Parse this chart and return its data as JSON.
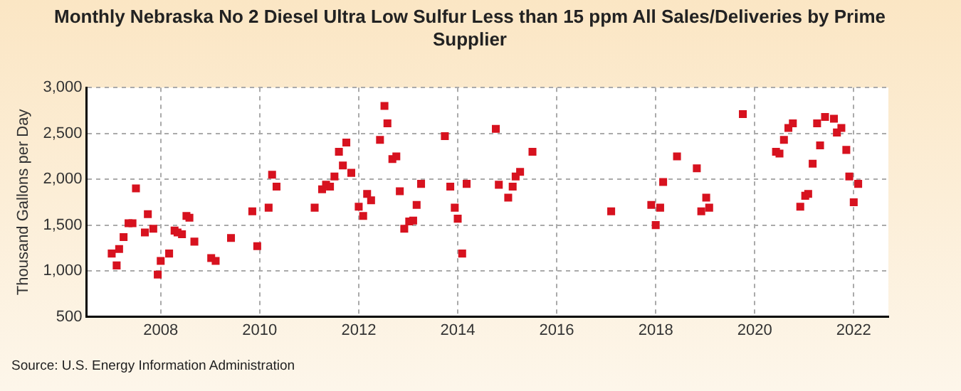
{
  "chart_data": {
    "type": "scatter",
    "title": "Monthly Nebraska No 2 Diesel Ultra Low Sulfur Less than 15 ppm All Sales/Deliveries by Prime Supplier",
    "ylabel": "Thousand Gallons per Day",
    "annotations": [
      "Source: U.S. Energy Information Administration"
    ],
    "xlim": [
      2006.5,
      2022.7
    ],
    "xticks": [
      2008,
      2010,
      2012,
      2014,
      2016,
      2018,
      2020,
      2022
    ],
    "ylim": [
      500,
      3000
    ],
    "yticks": [
      500,
      {
        "value": 1000,
        "label": "1,000"
      },
      {
        "value": 1500,
        "label": "1,500"
      },
      {
        "value": 2000,
        "label": "2,000"
      },
      {
        "value": 2500,
        "label": "2,500"
      },
      {
        "value": 3000,
        "label": "3,000"
      }
    ],
    "grid": true,
    "marker": "square",
    "legend": false,
    "series": [
      {
        "color": "#d7121f",
        "x": [
          2007.01,
          2007.11,
          2007.16,
          2007.25,
          2007.35,
          2007.43,
          2007.5,
          2007.68,
          2007.74,
          2007.85,
          2007.94,
          2008.0,
          2008.17,
          2008.28,
          2008.34,
          2008.43,
          2008.52,
          2008.58,
          2008.68,
          2009.02,
          2009.11,
          2009.42,
          2009.85,
          2009.95,
          2010.18,
          2010.25,
          2010.34,
          2011.11,
          2011.26,
          2011.34,
          2011.42,
          2011.51,
          2011.6,
          2011.68,
          2011.75,
          2011.85,
          2012.0,
          2012.09,
          2012.17,
          2012.25,
          2012.43,
          2012.52,
          2012.58,
          2012.68,
          2012.76,
          2012.83,
          2012.92,
          2013.02,
          2013.1,
          2013.17,
          2013.26,
          2013.74,
          2013.85,
          2013.94,
          2014.0,
          2014.09,
          2014.18,
          2014.77,
          2014.83,
          2015.02,
          2015.11,
          2015.17,
          2015.26,
          2015.51,
          2017.1,
          2017.91,
          2018.0,
          2018.09,
          2018.15,
          2018.43,
          2018.83,
          2018.92,
          2019.02,
          2019.08,
          2019.76,
          2020.43,
          2020.5,
          2020.59,
          2020.68,
          2020.77,
          2020.92,
          2021.02,
          2021.08,
          2021.17,
          2021.26,
          2021.32,
          2021.42,
          2021.6,
          2021.66,
          2021.75,
          2021.85,
          2021.91,
          2022.0,
          2022.09
        ],
        "values": [
          1190,
          1060,
          1240,
          1370,
          1520,
          1520,
          1900,
          1420,
          1620,
          1460,
          960,
          1110,
          1190,
          1440,
          1420,
          1400,
          1600,
          1580,
          1320,
          1140,
          1110,
          1360,
          1650,
          1270,
          1690,
          2050,
          1920,
          1690,
          1890,
          1940,
          1920,
          2030,
          2300,
          2150,
          2400,
          2070,
          1700,
          1600,
          1840,
          1770,
          2430,
          2800,
          2610,
          2220,
          2250,
          1870,
          1460,
          1540,
          1550,
          1720,
          1950,
          2470,
          1920,
          1690,
          1570,
          1190,
          1950,
          2550,
          1940,
          1800,
          1920,
          2030,
          2080,
          2300,
          1650,
          1720,
          1500,
          1690,
          1970,
          2250,
          2120,
          1650,
          1800,
          1690,
          2710,
          2300,
          2280,
          2430,
          2560,
          2610,
          1700,
          1820,
          1840,
          2170,
          2610,
          2370,
          2680,
          2660,
          2510,
          2560,
          2320,
          2030,
          1750,
          1950
        ]
      }
    ]
  }
}
